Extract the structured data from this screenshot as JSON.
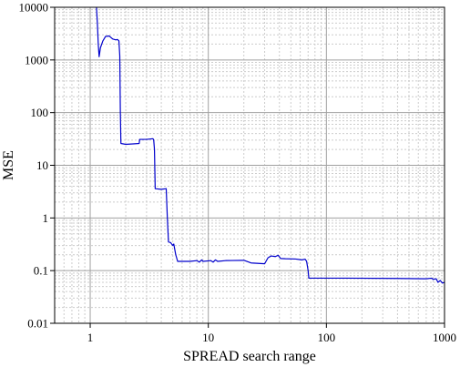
{
  "chart_data": {
    "type": "line",
    "title": "",
    "xlabel": "SPREAD search range",
    "ylabel": "MSE",
    "x_scale": "log",
    "y_scale": "log",
    "xlim": [
      0.5,
      1000
    ],
    "ylim": [
      0.01,
      10000
    ],
    "grid": true,
    "legend": "none",
    "x_ticks": [
      {
        "value": 1,
        "label": "1"
      },
      {
        "value": 10,
        "label": "10"
      },
      {
        "value": 100,
        "label": "100"
      },
      {
        "value": 1000,
        "label": "1000"
      }
    ],
    "y_ticks": [
      {
        "value": 0.01,
        "label": "0.01"
      },
      {
        "value": 0.1,
        "label": "0.1"
      },
      {
        "value": 1,
        "label": "1"
      },
      {
        "value": 10,
        "label": "10"
      },
      {
        "value": 100,
        "label": "100"
      },
      {
        "value": 1000,
        "label": "1000"
      },
      {
        "value": 10000,
        "label": "10000"
      }
    ],
    "colors": {
      "line": "#0000cc",
      "grid_major": "#a0a0a0",
      "grid_minor": "#cccccc",
      "axis": "#000000"
    },
    "series": [
      {
        "points": [
          [
            1.13,
            10000
          ],
          [
            1.15,
            5000
          ],
          [
            1.17,
            2000
          ],
          [
            1.19,
            1150
          ],
          [
            1.22,
            1700
          ],
          [
            1.28,
            2300
          ],
          [
            1.35,
            2800
          ],
          [
            1.45,
            2850
          ],
          [
            1.55,
            2500
          ],
          [
            1.65,
            2400
          ],
          [
            1.7,
            2450
          ],
          [
            1.75,
            2300
          ],
          [
            1.78,
            1200
          ],
          [
            1.8,
            100
          ],
          [
            1.82,
            26
          ],
          [
            2.0,
            25
          ],
          [
            2.3,
            25.5
          ],
          [
            2.6,
            26
          ],
          [
            2.62,
            31
          ],
          [
            3.0,
            31
          ],
          [
            3.4,
            32
          ],
          [
            3.45,
            30
          ],
          [
            3.5,
            20
          ],
          [
            3.55,
            3.6
          ],
          [
            4.0,
            3.5
          ],
          [
            4.4,
            3.6
          ],
          [
            4.5,
            1.0
          ],
          [
            4.6,
            0.35
          ],
          [
            4.8,
            0.34
          ],
          [
            5.0,
            0.3
          ],
          [
            5.1,
            0.32
          ],
          [
            5.3,
            0.2
          ],
          [
            5.5,
            0.15
          ],
          [
            7.0,
            0.15
          ],
          [
            8.0,
            0.155
          ],
          [
            8.4,
            0.145
          ],
          [
            8.8,
            0.16
          ],
          [
            9.0,
            0.15
          ],
          [
            10.5,
            0.155
          ],
          [
            11.0,
            0.145
          ],
          [
            11.5,
            0.16
          ],
          [
            12.0,
            0.15
          ],
          [
            14.0,
            0.155
          ],
          [
            20.0,
            0.157
          ],
          [
            23.0,
            0.14
          ],
          [
            30.0,
            0.135
          ],
          [
            32.0,
            0.175
          ],
          [
            34.0,
            0.19
          ],
          [
            37.0,
            0.185
          ],
          [
            39.0,
            0.195
          ],
          [
            41.0,
            0.17
          ],
          [
            45.0,
            0.168
          ],
          [
            55.0,
            0.166
          ],
          [
            62.0,
            0.16
          ],
          [
            66.0,
            0.165
          ],
          [
            68.0,
            0.15
          ],
          [
            70.0,
            0.1
          ],
          [
            71.0,
            0.072
          ],
          [
            150.0,
            0.072
          ],
          [
            400.0,
            0.071
          ],
          [
            700.0,
            0.07
          ],
          [
            780.0,
            0.072
          ],
          [
            800.0,
            0.068
          ],
          [
            850.0,
            0.07
          ],
          [
            880.0,
            0.06
          ],
          [
            920.0,
            0.065
          ],
          [
            960.0,
            0.058
          ],
          [
            1000.0,
            0.06
          ]
        ]
      }
    ]
  }
}
